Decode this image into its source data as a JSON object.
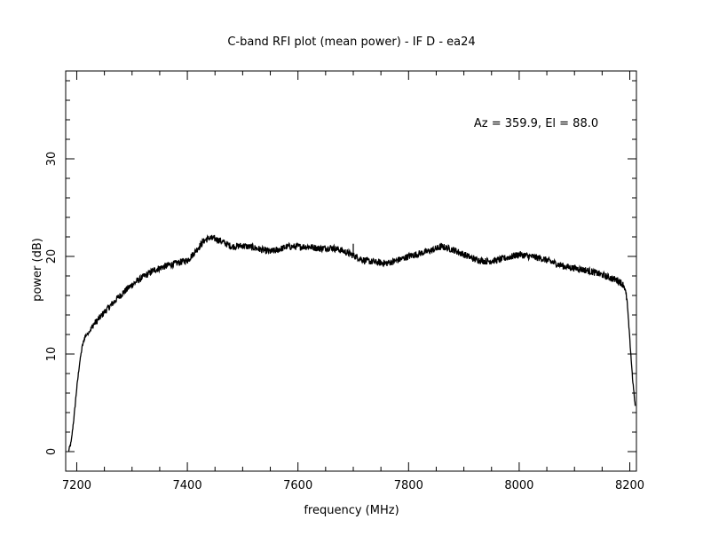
{
  "chart_data": {
    "type": "line",
    "title": "C-band RFI plot (mean power) - IF D - ea24",
    "xlabel": "frequency (MHz)",
    "ylabel": "power (dB)",
    "annotation": "Az = 359.9, El = 88.0",
    "xlim": [
      7180,
      8212
    ],
    "ylim": [
      -2,
      39
    ],
    "x_major_ticks": [
      7200,
      7400,
      7600,
      7800,
      8000,
      8200
    ],
    "y_major_ticks": [
      0,
      10,
      20,
      30
    ],
    "x_tick_labels": [
      "7200",
      "7400",
      "7600",
      "7800",
      "8000",
      "8200"
    ],
    "y_tick_labels": [
      "0",
      "10",
      "20",
      "30"
    ],
    "grid": false,
    "line_color": "#000000",
    "series": [
      {
        "x": [
          7185,
          7190,
          7195,
          7200,
          7205,
          7210,
          7215,
          7220,
          7225,
          7230,
          7240,
          7250,
          7260,
          7275,
          7290,
          7300,
          7320,
          7340,
          7360,
          7380,
          7400,
          7410,
          7420,
          7430,
          7440,
          7450,
          7460,
          7470,
          7480,
          7500,
          7520,
          7540,
          7550,
          7560,
          7570,
          7580,
          7600,
          7620,
          7640,
          7660,
          7680,
          7700,
          7720,
          7740,
          7760,
          7780,
          7800,
          7820,
          7840,
          7860,
          7880,
          7900,
          7920,
          7940,
          7960,
          7980,
          8000,
          8020,
          8040,
          8060,
          8080,
          8100,
          8120,
          8140,
          8160,
          8180,
          8190,
          8195,
          8200,
          8205,
          8210
        ],
        "y": [
          0,
          1,
          3.5,
          6.5,
          9,
          10.8,
          11.8,
          12.1,
          12.5,
          13.0,
          13.6,
          14.3,
          14.9,
          15.8,
          16.6,
          17.1,
          17.9,
          18.6,
          19.0,
          19.3,
          19.6,
          20.2,
          20.9,
          21.6,
          21.9,
          21.8,
          21.6,
          21.3,
          21.0,
          21.1,
          20.9,
          20.6,
          20.5,
          20.6,
          20.8,
          21.0,
          21.0,
          21.0,
          20.8,
          20.9,
          20.6,
          20.1,
          19.6,
          19.4,
          19.3,
          19.6,
          20.0,
          20.3,
          20.6,
          21.0,
          20.7,
          20.2,
          19.7,
          19.5,
          19.6,
          19.9,
          20.2,
          20.0,
          19.8,
          19.4,
          19.0,
          18.8,
          18.6,
          18.3,
          17.9,
          17.5,
          17.0,
          15.5,
          11.5,
          7.5,
          4.5
        ]
      }
    ]
  }
}
